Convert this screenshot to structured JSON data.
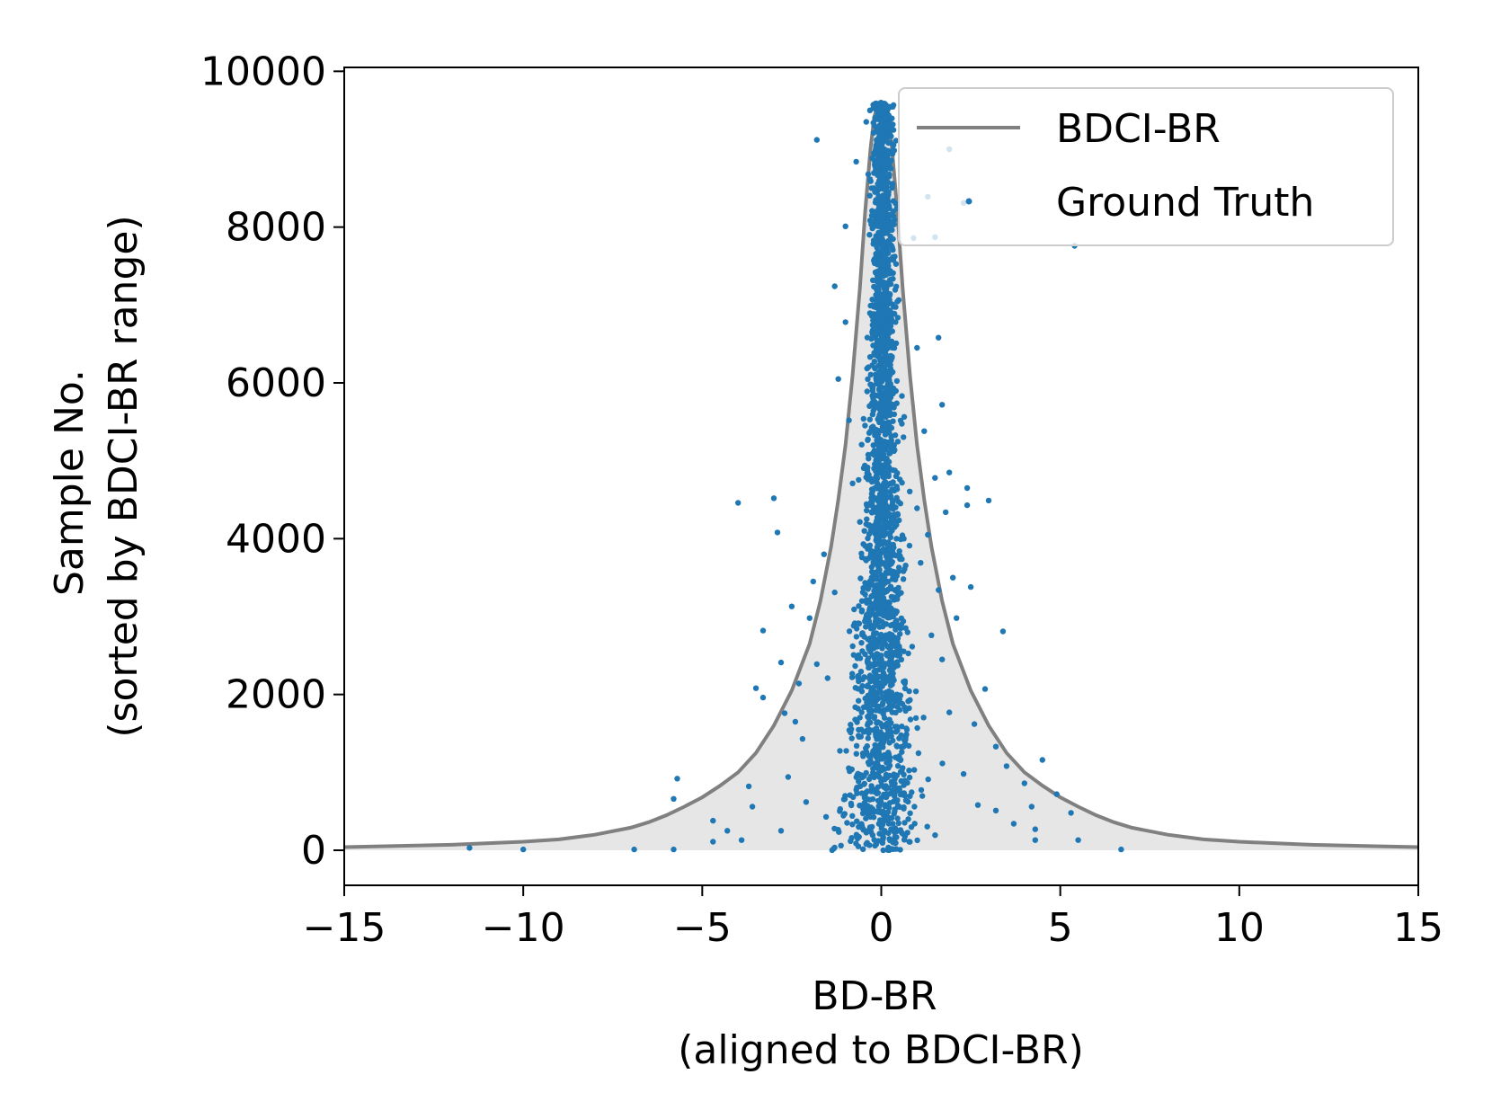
{
  "chart_data": {
    "type": "scatter",
    "xlabel_lines": [
      "BD-BR",
      "(aligned to BDCI-BR)"
    ],
    "ylabel_lines": [
      "Sample No.",
      "(sorted by BDCI-BR range)"
    ],
    "xlim": [
      -15,
      15
    ],
    "ylim": [
      -450,
      10050
    ],
    "x_ticks": [
      -15,
      -10,
      -5,
      0,
      5,
      10,
      15
    ],
    "x_tick_labels": [
      "−15",
      "−10",
      "−5",
      "0",
      "5",
      "10",
      "15"
    ],
    "y_ticks": [
      0,
      2000,
      4000,
      6000,
      8000,
      10000
    ],
    "y_tick_labels": [
      "0",
      "2000",
      "4000",
      "6000",
      "8000",
      "10000"
    ],
    "grid": false,
    "legend": {
      "position": "top-right",
      "entries": [
        {
          "label": "BDCI-BR",
          "kind": "line",
          "color": "#808080"
        },
        {
          "label": "Ground Truth",
          "kind": "marker",
          "color": "#1f77b4"
        }
      ]
    },
    "series": [
      {
        "name": "BDCI-BR",
        "kind": "line",
        "color": "#808080",
        "fill_color": "#e6e6e6",
        "points": [
          [
            -15,
            40
          ],
          [
            -12,
            70
          ],
          [
            -10,
            110
          ],
          [
            -9,
            140
          ],
          [
            -8,
            200
          ],
          [
            -7,
            290
          ],
          [
            -6.5,
            360
          ],
          [
            -6,
            450
          ],
          [
            -5.5,
            560
          ],
          [
            -5,
            680
          ],
          [
            -4.5,
            830
          ],
          [
            -4,
            1000
          ],
          [
            -3.5,
            1250
          ],
          [
            -3,
            1600
          ],
          [
            -2.5,
            2050
          ],
          [
            -2,
            2650
          ],
          [
            -1.7,
            3200
          ],
          [
            -1.4,
            3900
          ],
          [
            -1.2,
            4500
          ],
          [
            -1,
            5200
          ],
          [
            -0.8,
            6100
          ],
          [
            -0.6,
            7200
          ],
          [
            -0.45,
            8200
          ],
          [
            -0.3,
            9000
          ],
          [
            -0.2,
            9400
          ],
          [
            -0.1,
            9580
          ],
          [
            0,
            9600
          ],
          [
            0.1,
            9580
          ],
          [
            0.2,
            9400
          ],
          [
            0.3,
            9000
          ],
          [
            0.45,
            8200
          ],
          [
            0.6,
            7200
          ],
          [
            0.8,
            6100
          ],
          [
            1,
            5200
          ],
          [
            1.2,
            4500
          ],
          [
            1.4,
            3900
          ],
          [
            1.7,
            3200
          ],
          [
            2,
            2650
          ],
          [
            2.5,
            2050
          ],
          [
            3,
            1600
          ],
          [
            3.5,
            1250
          ],
          [
            4,
            1000
          ],
          [
            4.5,
            830
          ],
          [
            5,
            680
          ],
          [
            5.5,
            560
          ],
          [
            6,
            450
          ],
          [
            6.5,
            360
          ],
          [
            7,
            290
          ],
          [
            8,
            200
          ],
          [
            9,
            140
          ],
          [
            10,
            110
          ],
          [
            12,
            70
          ],
          [
            15,
            40
          ]
        ]
      },
      {
        "name": "Ground Truth",
        "kind": "scatter",
        "color": "#1f77b4",
        "count": 9600,
        "points": [
          [
            -11.5,
            30
          ],
          [
            -10,
            10
          ],
          [
            -6.9,
            10
          ],
          [
            -5.8,
            10
          ],
          [
            -5.7,
            920
          ],
          [
            -5.8,
            660
          ],
          [
            -4.7,
            380
          ],
          [
            -4.7,
            110
          ],
          [
            -4.3,
            250
          ],
          [
            -4.0,
            4460
          ],
          [
            -3.9,
            130
          ],
          [
            -3.7,
            820
          ],
          [
            -3.6,
            560
          ],
          [
            -3.5,
            2080
          ],
          [
            -3.3,
            1960
          ],
          [
            -3.3,
            2820
          ],
          [
            -3.0,
            4520
          ],
          [
            -2.9,
            4080
          ],
          [
            -2.8,
            250
          ],
          [
            -2.8,
            2410
          ],
          [
            -2.7,
            1760
          ],
          [
            -2.6,
            940
          ],
          [
            -2.5,
            3130
          ],
          [
            -2.4,
            1650
          ],
          [
            -2.3,
            2140
          ],
          [
            -2.2,
            1430
          ],
          [
            -2.1,
            620
          ],
          [
            -2.0,
            2980
          ],
          [
            -1.9,
            3450
          ],
          [
            -1.8,
            9120
          ],
          [
            -1.8,
            2390
          ],
          [
            -1.6,
            3800
          ],
          [
            -1.5,
            2210
          ],
          [
            -1.3,
            3310
          ],
          [
            -1.3,
            7240
          ],
          [
            -1.2,
            6050
          ],
          [
            -1.0,
            8010
          ],
          [
            -1.0,
            6780
          ],
          [
            -0.9,
            5520
          ],
          [
            -0.8,
            4710
          ],
          [
            -0.7,
            8840
          ],
          [
            0.9,
            7860
          ],
          [
            1.0,
            6450
          ],
          [
            1.0,
            4390
          ],
          [
            1.1,
            3690
          ],
          [
            1.2,
            5380
          ],
          [
            1.3,
            4050
          ],
          [
            1.3,
            8390
          ],
          [
            1.4,
            2760
          ],
          [
            1.5,
            4780
          ],
          [
            1.5,
            7870
          ],
          [
            1.6,
            6580
          ],
          [
            1.6,
            3340
          ],
          [
            1.7,
            2450
          ],
          [
            1.7,
            5720
          ],
          [
            1.8,
            4340
          ],
          [
            1.9,
            1770
          ],
          [
            1.9,
            4850
          ],
          [
            1.9,
            9000
          ],
          [
            2.0,
            3500
          ],
          [
            2.1,
            2980
          ],
          [
            2.3,
            8310
          ],
          [
            2.3,
            980
          ],
          [
            2.4,
            4430
          ],
          [
            2.4,
            4650
          ],
          [
            2.5,
            3380
          ],
          [
            2.6,
            1620
          ],
          [
            2.7,
            580
          ],
          [
            2.9,
            2070
          ],
          [
            3.0,
            4490
          ],
          [
            3.2,
            1330
          ],
          [
            3.2,
            510
          ],
          [
            3.4,
            2810
          ],
          [
            3.5,
            1080
          ],
          [
            3.7,
            340
          ],
          [
            4.0,
            860
          ],
          [
            4.2,
            560
          ],
          [
            4.3,
            130
          ],
          [
            4.3,
            270
          ],
          [
            4.5,
            1160
          ],
          [
            4.9,
            720
          ],
          [
            5.3,
            480
          ],
          [
            5.4,
            7760
          ],
          [
            5.5,
            130
          ],
          [
            6.7,
            10
          ]
        ]
      }
    ]
  }
}
